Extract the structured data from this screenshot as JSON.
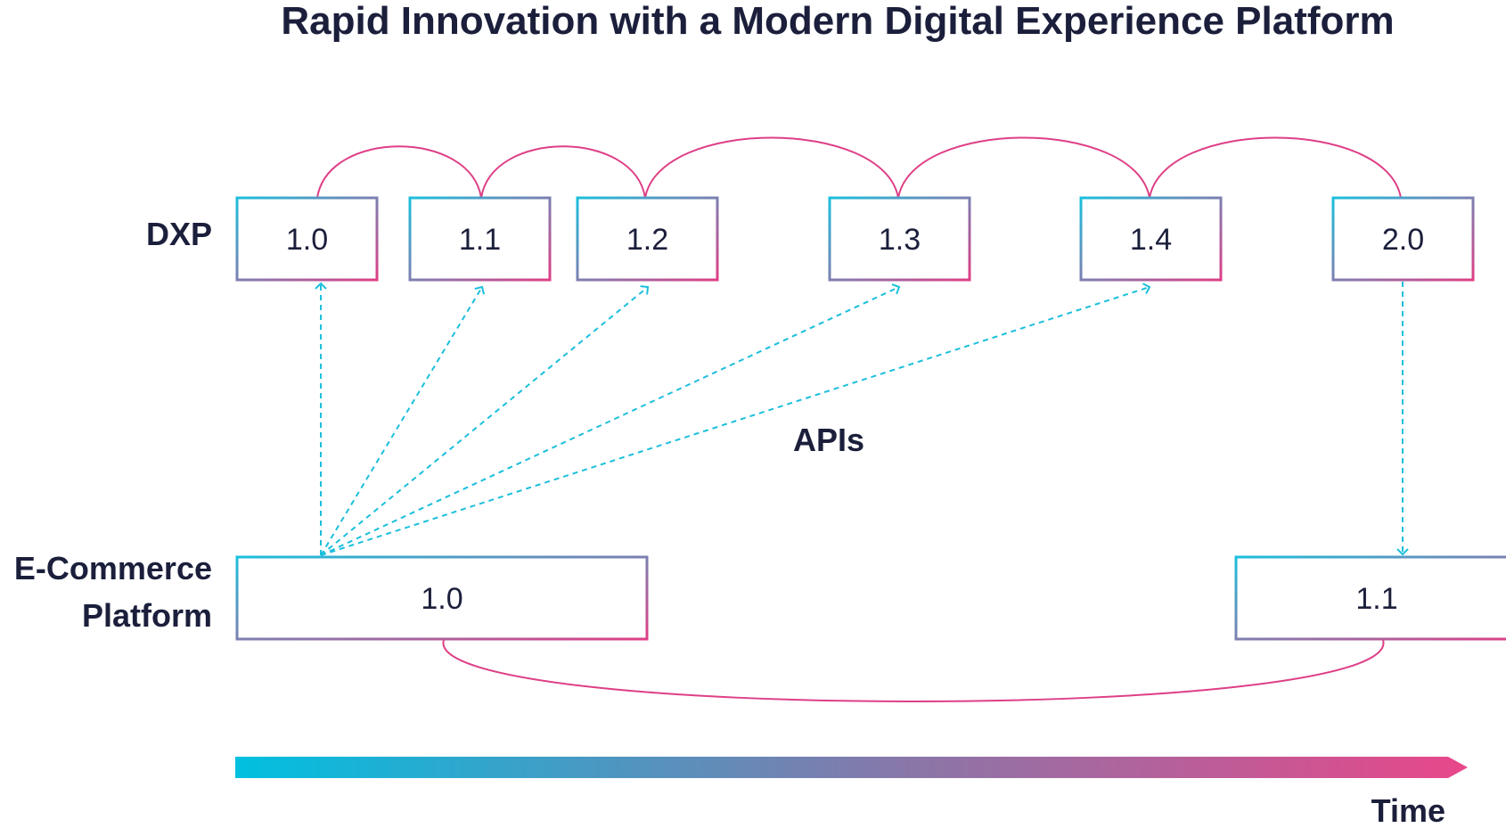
{
  "title": "Rapid Innovation with a Modern Digital Experience Platform",
  "rows": {
    "dxp_label": "DXP",
    "ecommerce_label_line1": "E-Commerce",
    "ecommerce_label_line2": "Platform"
  },
  "dxp_versions": [
    "1.0",
    "1.1",
    "1.2",
    "1.3",
    "1.4",
    "2.0"
  ],
  "ecommerce_versions": [
    "1.0",
    "1.1"
  ],
  "apis_label": "APIs",
  "time_label": "Time",
  "colors": {
    "cyan": "#1cbfdc",
    "magenta": "#de3f86",
    "text": "#1b1f3b"
  }
}
